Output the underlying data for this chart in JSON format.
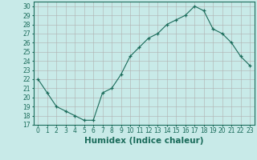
{
  "x": [
    0,
    1,
    2,
    3,
    4,
    5,
    6,
    7,
    8,
    9,
    10,
    11,
    12,
    13,
    14,
    15,
    16,
    17,
    18,
    19,
    20,
    21,
    22,
    23
  ],
  "y": [
    22,
    20.5,
    19,
    18.5,
    18,
    17.5,
    17.5,
    20.5,
    21,
    22.5,
    24.5,
    25.5,
    26.5,
    27,
    28,
    28.5,
    29,
    30,
    29.5,
    27.5,
    27,
    26,
    24.5,
    23.5
  ],
  "line_color": "#1a6b5a",
  "marker": "+",
  "bg_color": "#c8eae8",
  "grid_color": "#b0b0b0",
  "xlabel": "Humidex (Indice chaleur)",
  "xlim": [
    -0.5,
    23.5
  ],
  "ylim": [
    17,
    30.5
  ],
  "yticks": [
    17,
    18,
    19,
    20,
    21,
    22,
    23,
    24,
    25,
    26,
    27,
    28,
    29,
    30
  ],
  "xticks": [
    0,
    1,
    2,
    3,
    4,
    5,
    6,
    7,
    8,
    9,
    10,
    11,
    12,
    13,
    14,
    15,
    16,
    17,
    18,
    19,
    20,
    21,
    22,
    23
  ],
  "tick_color": "#1a6b5a",
  "tick_fontsize": 5.5,
  "xlabel_fontsize": 7.5
}
